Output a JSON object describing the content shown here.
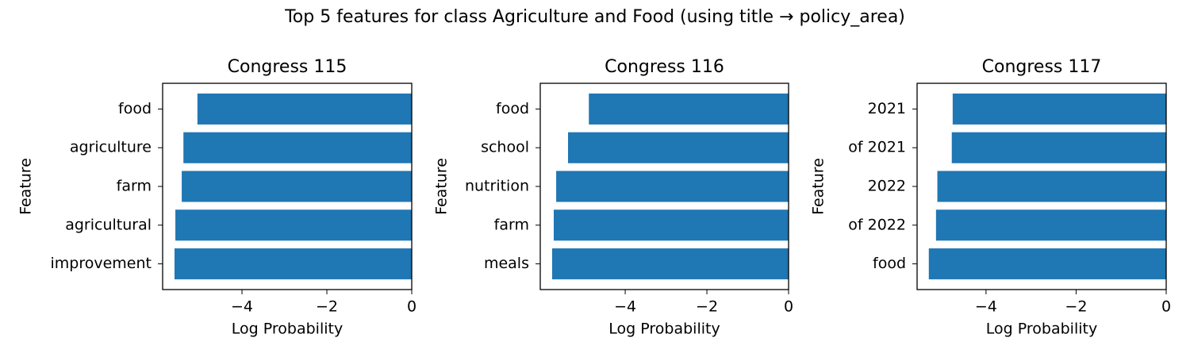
{
  "title": "Top 5 features for class Agriculture and Food (using title → policy_area)",
  "chart_data": [
    {
      "type": "barh",
      "title": "Congress 115",
      "xlabel": "Log Probability",
      "ylabel": "Feature",
      "categories": [
        "food",
        "agriculture",
        "farm",
        "agricultural",
        "improvement"
      ],
      "values": [
        -5.05,
        -5.38,
        -5.42,
        -5.57,
        -5.59
      ],
      "color": "#1f77b4",
      "xlim": [
        -5.87,
        0
      ],
      "xticks": [
        {
          "value": -4,
          "label": "−4"
        },
        {
          "value": -2,
          "label": "−2"
        },
        0
      ]
    },
    {
      "type": "barh",
      "title": "Congress 116",
      "xlabel": "Log Probability",
      "ylabel": "Feature",
      "categories": [
        "food",
        "school",
        "nutrition",
        "farm",
        "meals"
      ],
      "values": [
        -4.89,
        -5.4,
        -5.69,
        -5.75,
        -5.79
      ],
      "color": "#1f77b4",
      "xlim": [
        -6.08,
        0
      ],
      "xticks": [
        {
          "value": -4,
          "label": "−4"
        },
        {
          "value": -2,
          "label": "−2"
        },
        0
      ]
    },
    {
      "type": "barh",
      "title": "Congress 117",
      "xlabel": "Log Probability",
      "ylabel": "Feature",
      "categories": [
        "2021",
        "of 2021",
        "2022",
        "of 2022",
        "food"
      ],
      "values": [
        -4.74,
        -4.76,
        -5.08,
        -5.11,
        -5.27
      ],
      "color": "#1f77b4",
      "xlim": [
        -5.53,
        0
      ],
      "xticks": [
        {
          "value": -4,
          "label": "−4"
        },
        {
          "value": -2,
          "label": "−2"
        },
        0
      ]
    }
  ]
}
